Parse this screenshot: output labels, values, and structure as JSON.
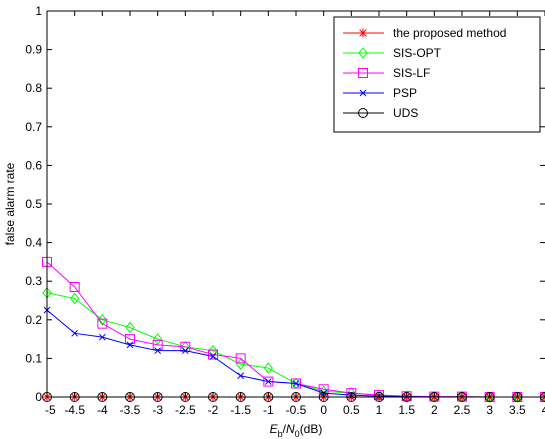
{
  "chart_data": {
    "type": "line",
    "title": "",
    "xlabel": {
      "E": "E",
      "b": "b",
      "slash": "/",
      "N": "N",
      "zero": "0",
      "unit": "(dB)"
    },
    "ylabel": "false alarm rate",
    "xlim": [
      -5,
      4
    ],
    "ylim": [
      0,
      1
    ],
    "xticks": [
      "-5",
      "-4.5",
      "-4",
      "-3.5",
      "-3",
      "-2.5",
      "-2",
      "-1.5",
      "-1",
      "-0.5",
      "0",
      "0.5",
      "1",
      "1.5",
      "2",
      "2.5",
      "3",
      "3.5",
      "4"
    ],
    "yticks": [
      "0",
      "0.1",
      "0.2",
      "0.3",
      "0.4",
      "0.5",
      "0.6",
      "0.7",
      "0.8",
      "0.9",
      "1"
    ],
    "x": [
      -5,
      -4.5,
      -4,
      -3.5,
      -3,
      -2.5,
      -2,
      -1.5,
      -1,
      -0.5,
      0,
      0.5,
      1,
      1.5,
      2,
      2.5,
      3,
      3.5,
      4
    ],
    "grid": false,
    "legend_position": "top-right",
    "series": [
      {
        "name": "the proposed method",
        "color": "#ff0000",
        "marker": "asterisk",
        "values": [
          0,
          0,
          0,
          0,
          0,
          0,
          0,
          0,
          0,
          0,
          0,
          0,
          0,
          0,
          0,
          0,
          0,
          0,
          0
        ]
      },
      {
        "name": "SIS-OPT",
        "color": "#00ff00",
        "marker": "diamond",
        "values": [
          0.27,
          0.255,
          0.2,
          0.18,
          0.15,
          0.13,
          0.12,
          0.085,
          0.075,
          0.035,
          0.015,
          0.01,
          0.005,
          0.002,
          0.001,
          0.001,
          0,
          0,
          0
        ]
      },
      {
        "name": "SIS-LF",
        "color": "#ff00ff",
        "marker": "square",
        "values": [
          0.35,
          0.285,
          0.19,
          0.15,
          0.135,
          0.13,
          0.11,
          0.1,
          0.04,
          0.035,
          0.02,
          0.01,
          0.005,
          0.002,
          0.001,
          0.001,
          0,
          0,
          0
        ]
      },
      {
        "name": "PSP",
        "color": "#0000ff",
        "marker": "x",
        "values": [
          0.225,
          0.165,
          0.155,
          0.135,
          0.12,
          0.12,
          0.105,
          0.055,
          0.04,
          0.035,
          0.01,
          0.005,
          0.002,
          0.001,
          0,
          0,
          0,
          0,
          0
        ]
      },
      {
        "name": "UDS",
        "color": "#000000",
        "marker": "circle",
        "values": [
          0,
          0,
          0,
          0,
          0,
          0,
          0,
          0,
          0,
          0,
          0,
          0,
          0,
          0,
          0,
          0,
          0,
          0,
          0
        ]
      }
    ]
  }
}
